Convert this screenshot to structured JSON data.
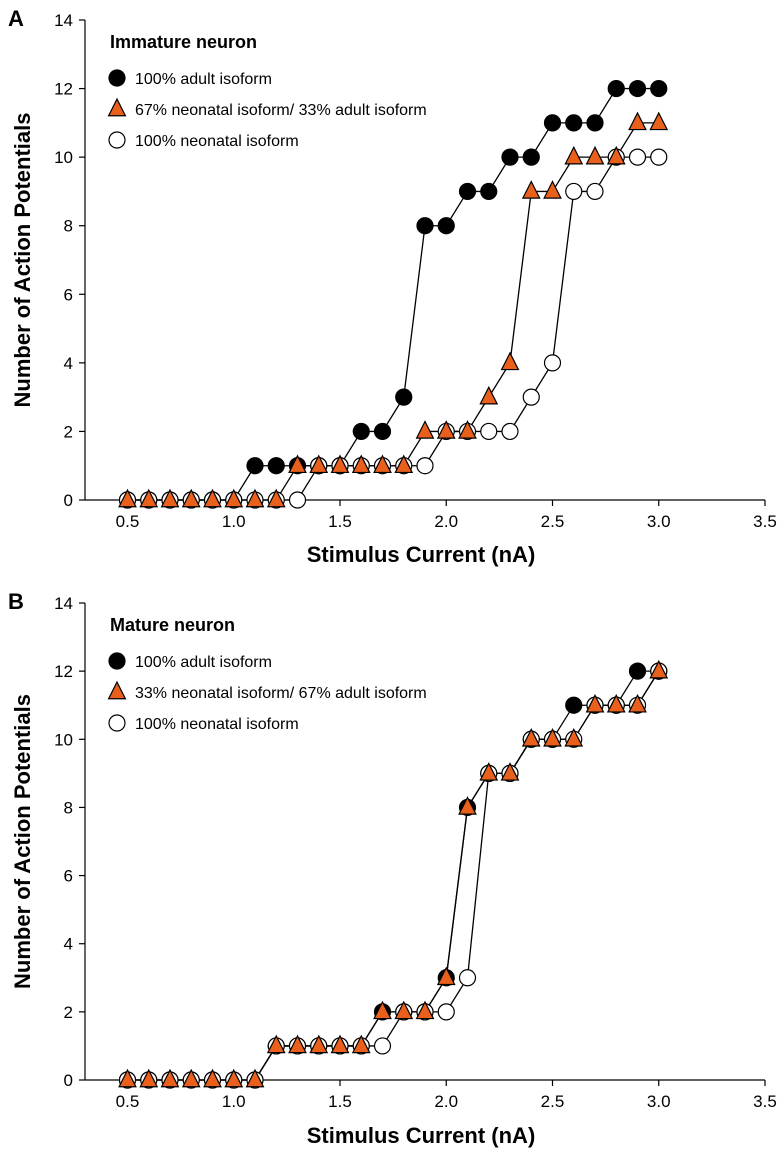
{
  "chart_data": [
    {
      "panel_label": "A",
      "type": "line",
      "title": "Immature neuron",
      "xlabel": "Stimulus Current (nA)",
      "ylabel": "Number of Action Potentials",
      "xlim": [
        0.3,
        3.5
      ],
      "ylim": [
        0,
        14
      ],
      "xticks": [
        "0.5",
        "1.0",
        "1.5",
        "2.0",
        "2.5",
        "3.0",
        "3.5"
      ],
      "yticks": [
        "0",
        "2",
        "4",
        "6",
        "8",
        "10",
        "12",
        "14"
      ],
      "grid": false,
      "legend_position": "top-left",
      "x": [
        0.5,
        0.6,
        0.7,
        0.8,
        0.9,
        1.0,
        1.1,
        1.2,
        1.3,
        1.4,
        1.5,
        1.6,
        1.7,
        1.8,
        1.9,
        2.0,
        2.1,
        2.2,
        2.3,
        2.4,
        2.5,
        2.6,
        2.7,
        2.8,
        2.9,
        3.0
      ],
      "series": [
        {
          "name": "100% adult isoform",
          "marker": "filled-circle",
          "color": "#000000",
          "values": [
            0,
            0,
            0,
            0,
            0,
            0,
            1,
            1,
            1,
            1,
            1,
            2,
            2,
            3,
            8,
            8,
            9,
            9,
            10,
            10,
            11,
            11,
            11,
            12,
            12,
            12
          ]
        },
        {
          "name": "100% neonatal isoform",
          "marker": "open-circle",
          "color": "#ffffff",
          "values": [
            0,
            0,
            0,
            0,
            0,
            0,
            0,
            0,
            0,
            1,
            1,
            1,
            1,
            1,
            1,
            2,
            2,
            2,
            2,
            3,
            4,
            9,
            9,
            10,
            10,
            10
          ]
        },
        {
          "name": "67% neonatal isoform/ 33% adult isoform",
          "marker": "triangle",
          "color": "#e8601c",
          "values": [
            0,
            0,
            0,
            0,
            0,
            0,
            0,
            0,
            1,
            1,
            1,
            1,
            1,
            1,
            2,
            2,
            2,
            3,
            4,
            9,
            9,
            10,
            10,
            10,
            11,
            11
          ]
        }
      ],
      "legend_order": [
        0,
        2,
        1
      ]
    },
    {
      "panel_label": "B",
      "type": "line",
      "title": "Mature neuron",
      "xlabel": "Stimulus Current (nA)",
      "ylabel": "Number of Action Potentials",
      "xlim": [
        0.3,
        3.5
      ],
      "ylim": [
        0,
        14
      ],
      "xticks": [
        "0.5",
        "1.0",
        "1.5",
        "2.0",
        "2.5",
        "3.0",
        "3.5"
      ],
      "yticks": [
        "0",
        "2",
        "4",
        "6",
        "8",
        "10",
        "12",
        "14"
      ],
      "grid": false,
      "legend_position": "top-left",
      "x": [
        0.5,
        0.6,
        0.7,
        0.8,
        0.9,
        1.0,
        1.1,
        1.2,
        1.3,
        1.4,
        1.5,
        1.6,
        1.7,
        1.8,
        1.9,
        2.0,
        2.1,
        2.2,
        2.3,
        2.4,
        2.5,
        2.6,
        2.7,
        2.8,
        2.9,
        3.0
      ],
      "series": [
        {
          "name": "100% adult isoform",
          "marker": "filled-circle",
          "color": "#000000",
          "values": [
            0,
            0,
            0,
            0,
            0,
            0,
            0,
            1,
            1,
            1,
            1,
            1,
            2,
            2,
            2,
            3,
            8,
            9,
            9,
            10,
            10,
            11,
            11,
            11,
            12,
            12
          ]
        },
        {
          "name": "100% neonatal isoform",
          "marker": "open-circle",
          "color": "#ffffff",
          "values": [
            0,
            0,
            0,
            0,
            0,
            0,
            0,
            1,
            1,
            1,
            1,
            1,
            1,
            2,
            2,
            2,
            3,
            9,
            9,
            10,
            10,
            10,
            11,
            11,
            11,
            12
          ]
        },
        {
          "name": "33% neonatal isoform/ 67% adult isoform",
          "marker": "triangle",
          "color": "#e8601c",
          "values": [
            0,
            0,
            0,
            0,
            0,
            0,
            0,
            1,
            1,
            1,
            1,
            1,
            2,
            2,
            2,
            3,
            8,
            9,
            9,
            10,
            10,
            10,
            11,
            11,
            11,
            12
          ]
        }
      ],
      "legend_order": [
        0,
        2,
        1
      ]
    }
  ]
}
